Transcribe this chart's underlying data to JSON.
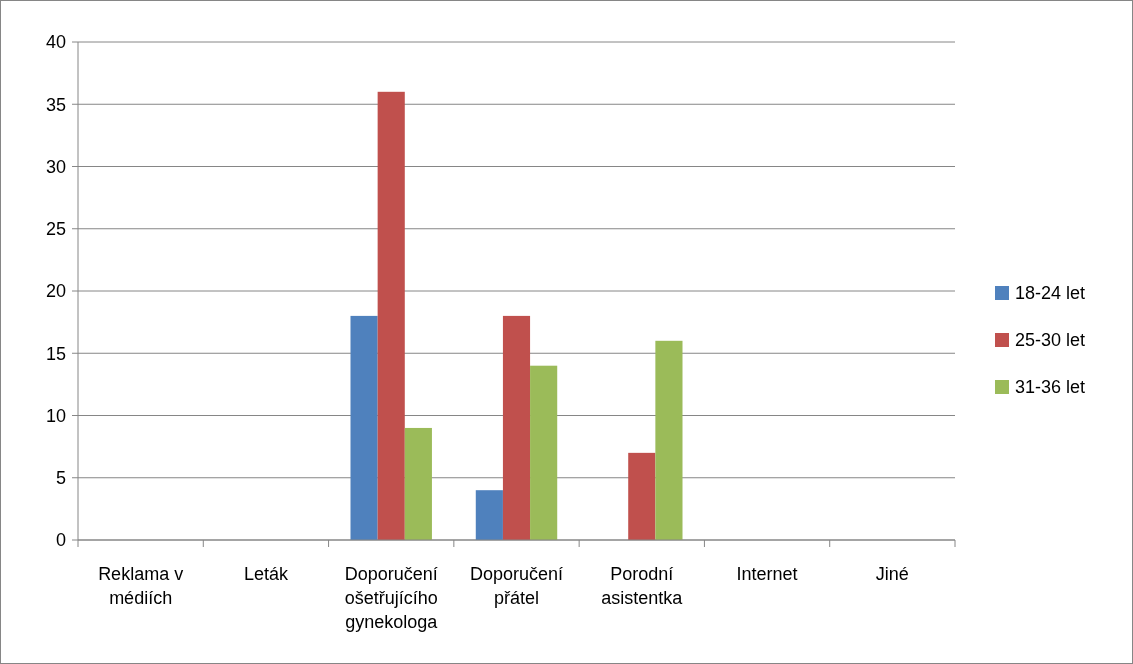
{
  "chart_data": {
    "type": "bar",
    "categories": [
      "Reklama v médiích",
      "Leták",
      "Doporučení ošetřujícího gynekologa",
      "Doporučení přátel",
      "Porodní asistentka",
      "Internet",
      "Jiné"
    ],
    "series": [
      {
        "name": "18-24 let",
        "color": "#4f81bd",
        "values": [
          0,
          0,
          18,
          4,
          0,
          0,
          0
        ]
      },
      {
        "name": "25-30 let",
        "color": "#c0504d",
        "values": [
          0,
          0,
          36,
          18,
          7,
          0,
          0
        ]
      },
      {
        "name": "31-36 let",
        "color": "#9bbb59",
        "values": [
          0,
          0,
          9,
          14,
          16,
          0,
          0
        ]
      }
    ],
    "ylim": [
      0,
      40
    ],
    "yticks": [
      0,
      5,
      10,
      15,
      20,
      25,
      30,
      35,
      40
    ],
    "grid": "y",
    "legend": "right"
  }
}
